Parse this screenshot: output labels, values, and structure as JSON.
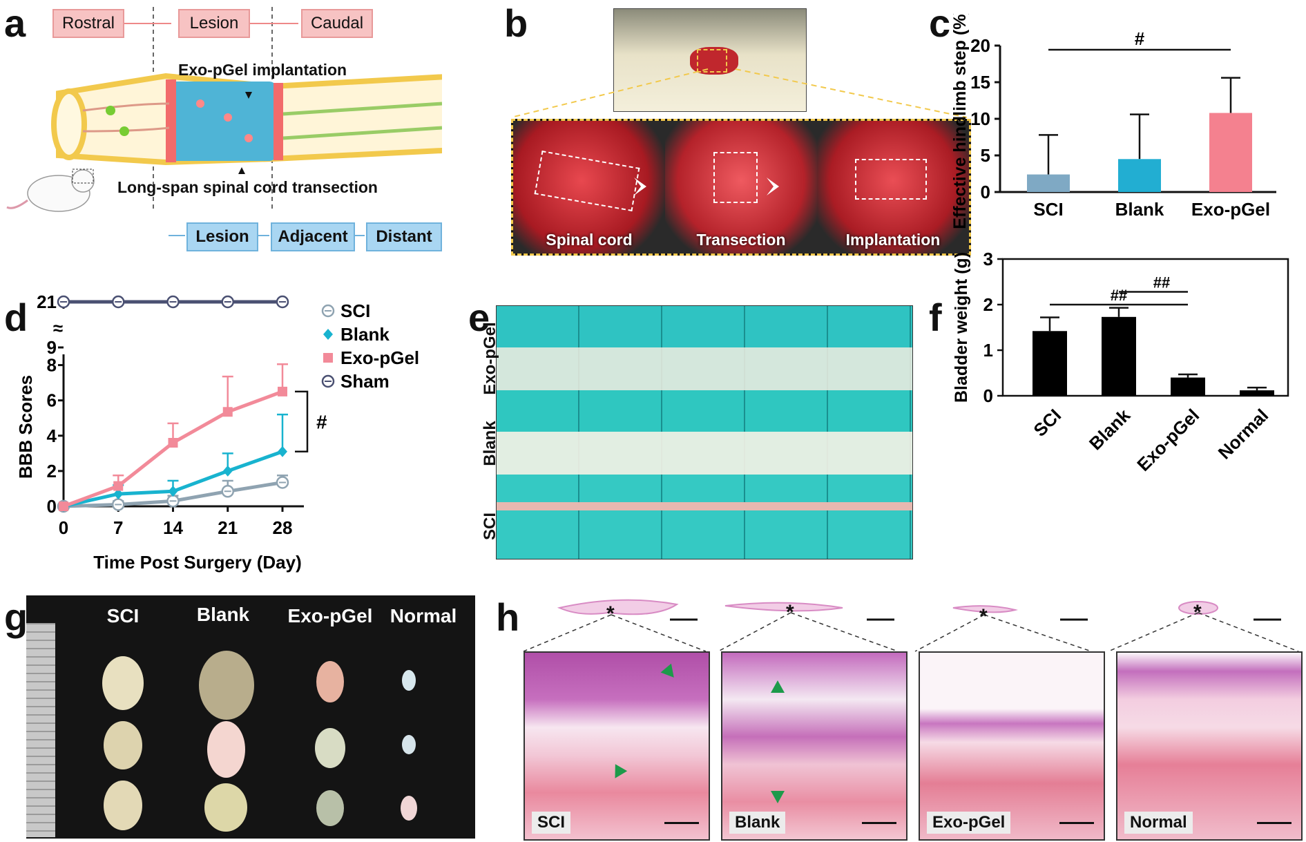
{
  "panel_labels": {
    "a": "a",
    "b": "b",
    "c": "c",
    "d": "d",
    "e": "e",
    "f": "f",
    "g": "g",
    "h": "h"
  },
  "panel_a": {
    "top_regions": [
      "Rostral",
      "Lesion",
      "Caudal"
    ],
    "implant_label": "Exo-pGel implantation",
    "transection_label": "Long-span spinal cord transection",
    "bottom_regions": [
      "Lesion",
      "Adjacent",
      "Distant"
    ]
  },
  "panel_b": {
    "steps": [
      "Spinal cord",
      "Transection",
      "Implantation"
    ]
  },
  "panel_c": {
    "chart_data": {
      "type": "bar",
      "categories": [
        "SCI",
        "Blank",
        "Exo-pGel"
      ],
      "values": [
        2.4,
        4.5,
        10.8
      ],
      "errors": [
        5.4,
        6.1,
        4.8
      ],
      "colors": [
        "#7fa9c4",
        "#22aed2",
        "#f4818f"
      ],
      "ylabel": "Effective hindlimb step (%)",
      "ylim": [
        0,
        20
      ],
      "yticks": [
        "0",
        "5",
        "10",
        "15",
        "20"
      ],
      "significance": [
        {
          "from": "SCI",
          "to": "Exo-pGel",
          "label": "#"
        }
      ]
    }
  },
  "panel_d": {
    "chart_data": {
      "type": "line",
      "x": [
        0,
        7,
        14,
        21,
        28
      ],
      "xlabel": "Time Post Surgery (Day)",
      "ylabel": "BBB Scores",
      "ylim": [
        0,
        9
      ],
      "yticks": [
        "0",
        "2",
        "4",
        "6",
        "8",
        "9",
        "21"
      ],
      "axis_break": "y between 9 and 21",
      "series": [
        {
          "name": "SCI",
          "color": "#8fa3b1",
          "marker": "open-circle",
          "values": [
            0,
            0.1,
            0.3,
            0.85,
            1.35
          ],
          "errors": [
            0,
            0.2,
            0.3,
            0.6,
            0.4
          ]
        },
        {
          "name": "Blank",
          "color": "#18b3cf",
          "marker": "diamond",
          "values": [
            0,
            0.7,
            0.85,
            2.0,
            3.1
          ],
          "errors": [
            0,
            0.5,
            0.6,
            1.0,
            2.1
          ]
        },
        {
          "name": "Exo-pGel",
          "color": "#f28a99",
          "marker": "square",
          "values": [
            0,
            1.15,
            3.6,
            5.35,
            6.5
          ],
          "errors": [
            0,
            0.6,
            1.1,
            2.0,
            1.55
          ]
        },
        {
          "name": "Sham",
          "color": "#4a5072",
          "marker": "open-circle-bar",
          "values": [
            21,
            21,
            21,
            21,
            21
          ],
          "errors": [
            0,
            0,
            0,
            0,
            0
          ]
        }
      ],
      "significance": [
        {
          "label": "#"
        }
      ]
    }
  },
  "panel_e": {
    "rows": [
      "Exo-pGel",
      "Blank",
      "SCI"
    ]
  },
  "panel_f": {
    "chart_data": {
      "type": "bar",
      "categories": [
        "SCI",
        "Blank",
        "Exo-pGel",
        "Normal"
      ],
      "values": [
        1.42,
        1.73,
        0.4,
        0.12
      ],
      "errors": [
        0.3,
        0.2,
        0.07,
        0.06
      ],
      "colors": [
        "#000000",
        "#000000",
        "#000000",
        "#000000"
      ],
      "ylabel": "Bladder weight (g)",
      "ylim": [
        0,
        3
      ],
      "yticks": [
        "0",
        "1",
        "2",
        "3"
      ],
      "significance": [
        {
          "from": "SCI",
          "to": "Exo-pGel",
          "label": "##"
        },
        {
          "from": "Blank",
          "to": "Exo-pGel",
          "label": "##"
        }
      ]
    }
  },
  "panel_g": {
    "columns": [
      "SCI",
      "Blank",
      "Exo-pGel",
      "Normal"
    ]
  },
  "panel_h": {
    "samples": [
      "SCI",
      "Blank",
      "Exo-pGel",
      "Normal"
    ],
    "marker": "*"
  }
}
